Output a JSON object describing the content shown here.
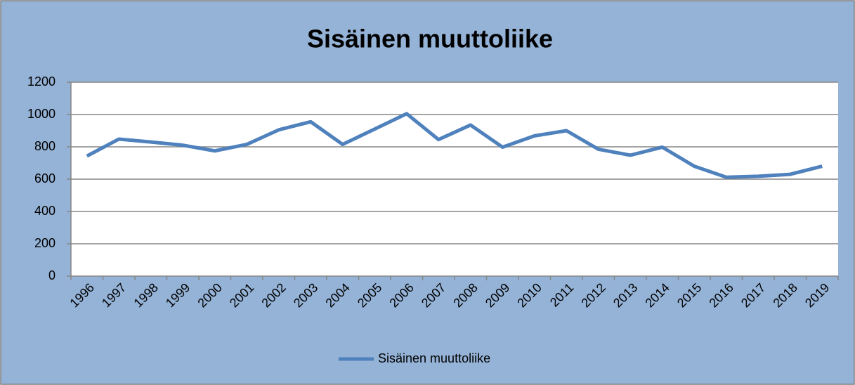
{
  "chart_data": {
    "type": "line",
    "title": "Sisäinen muuttoliike",
    "categories": [
      "1996",
      "1997",
      "1998",
      "1999",
      "2000",
      "2001",
      "2002",
      "2003",
      "2004",
      "2005",
      "2006",
      "2007",
      "2008",
      "2009",
      "2010",
      "2011",
      "2012",
      "2013",
      "2014",
      "2015",
      "2016",
      "2017",
      "2018",
      "2019"
    ],
    "series": [
      {
        "name": "Sisäinen muuttoliike",
        "color": "#4f81bd",
        "values": [
          743,
          848,
          830,
          810,
          775,
          815,
          905,
          955,
          815,
          910,
          1005,
          845,
          935,
          798,
          868,
          900,
          785,
          748,
          798,
          680,
          612,
          618,
          630,
          680
        ]
      }
    ],
    "ylim": [
      0,
      1200
    ],
    "yticks": [
      0,
      200,
      400,
      600,
      800,
      1000,
      1200
    ],
    "grid": true,
    "legend": "bottom"
  }
}
